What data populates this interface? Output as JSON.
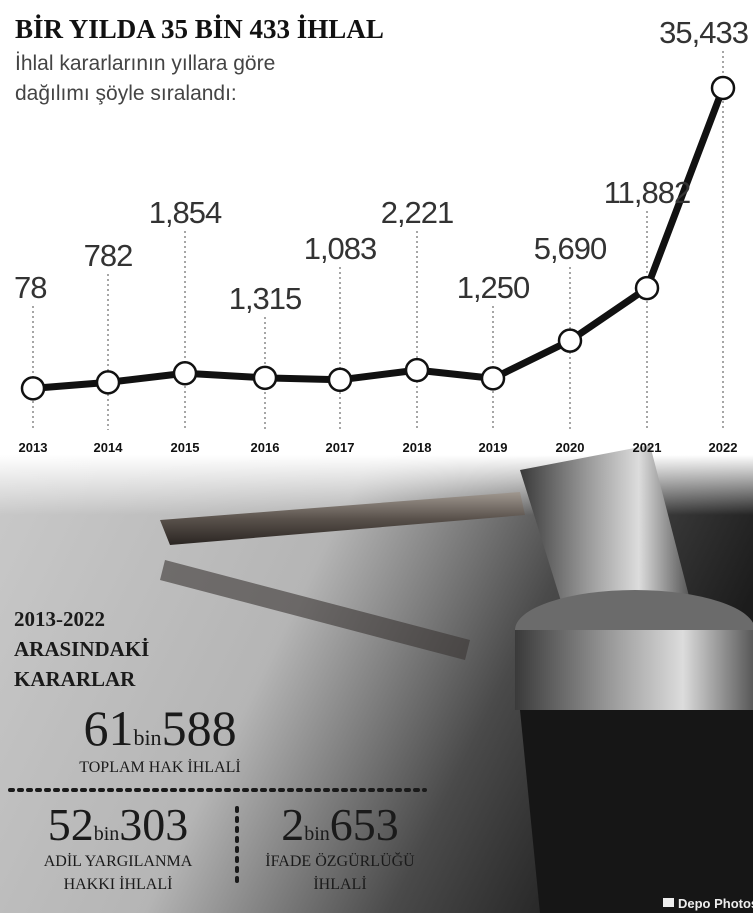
{
  "chart_data": {
    "type": "line",
    "title": "BİR YILDA 35 BİN 433 İHLAL",
    "subtitle": [
      "İhlal kararlarının yıllara göre",
      "dağılımı şöyle sıralandı:"
    ],
    "categories": [
      "2013",
      "2014",
      "2015",
      "2016",
      "2017",
      "2018",
      "2019",
      "2020",
      "2021",
      "2022"
    ],
    "values": [
      78,
      782,
      1854,
      1315,
      1083,
      2221,
      1250,
      5690,
      11882,
      35433
    ],
    "value_labels": [
      "78",
      "782",
      "1,854",
      "1,315",
      "1,083",
      "2,221",
      "1,250",
      "5,690",
      "11,882",
      "35,433"
    ],
    "color": "#111111"
  },
  "summary": {
    "heading": [
      "2013-2022",
      "ARASINDAKİ",
      "KARARLAR"
    ],
    "total": {
      "whole": "61",
      "unit": "bin",
      "rest": "588",
      "label": "TOPLAM HAK İHLALİ"
    },
    "items": [
      {
        "whole": "52",
        "unit": "bin",
        "rest": "303",
        "label": [
          "ADİL YARGILANMA",
          "HAKKI İHLALİ"
        ]
      },
      {
        "whole": "2",
        "unit": "bin",
        "rest": "653",
        "label": [
          "İFADE ÖZGÜRLÜĞÜ",
          "İHLALİ"
        ]
      }
    ],
    "credit": "Depo Photos"
  }
}
